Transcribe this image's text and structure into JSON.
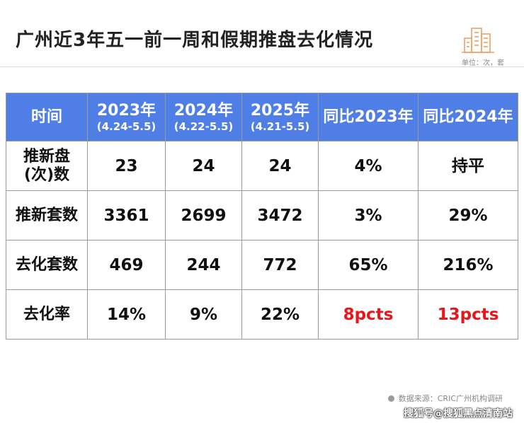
{
  "title": "广州近3年五一前一周和假期推盘去化情况",
  "unit": "单位：次，套",
  "table": {
    "headers": [
      {
        "main": "时间",
        "sub": ""
      },
      {
        "main": "2023年",
        "sub": "(4.24-5.5)"
      },
      {
        "main": "2024年",
        "sub": "(4.22-5.5)"
      },
      {
        "main": "2025年",
        "sub": "(4.21-5.5)"
      },
      {
        "main": "同比2023年",
        "sub": ""
      },
      {
        "main": "同比2024年",
        "sub": ""
      }
    ],
    "rows": [
      {
        "label": "推新盘(次)数",
        "cells": [
          "23",
          "24",
          "24",
          "4%",
          "持平"
        ]
      },
      {
        "label": "推新套数",
        "cells": [
          "3361",
          "2699",
          "3472",
          "3%",
          "29%"
        ]
      },
      {
        "label": "去化套数",
        "cells": [
          "469",
          "244",
          "772",
          "65%",
          "216%"
        ]
      },
      {
        "label": "去化率",
        "cells": [
          "14%",
          "9%",
          "22%",
          "8pcts",
          "13pcts"
        ]
      }
    ]
  },
  "source": "数据来源：CRIC广州机构调研",
  "credit": "搜狐号@搜狐黑点清南站",
  "icons": {
    "header_icon": "building-icon"
  },
  "colors": {
    "header_bg": "#4f7ee6",
    "highlight": "#e8161b",
    "icon": "#f0a060"
  }
}
